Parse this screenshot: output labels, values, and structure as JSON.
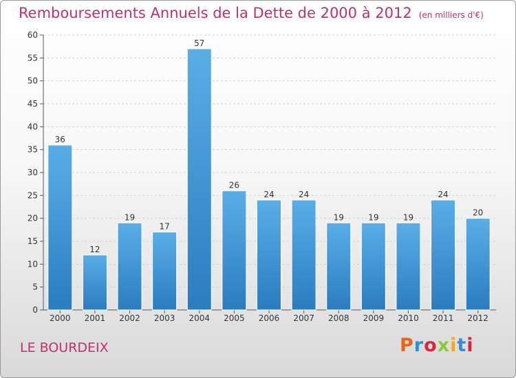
{
  "title": "Remboursements Annuels de la Dette de 2000 à 2012",
  "unit": "(en milliers d'€)",
  "commune": "LE BOURDEIX",
  "logo": {
    "text": "Proxiti",
    "colors": [
      "#e8641b",
      "#2e8fd6",
      "#d7263d",
      "#8dc63f",
      "#f5a623",
      "#2e8fd6",
      "#d7263d"
    ]
  },
  "colors": {
    "bar_top": "#5aaee6",
    "bar_bottom": "#2a7cc0",
    "title": "#c0306a"
  },
  "chart_data": {
    "type": "bar",
    "title": "Remboursements Annuels de la Dette de 2000 à 2012",
    "xlabel": "",
    "ylabel": "",
    "ylim": [
      0,
      60
    ],
    "yticks": [
      0,
      5,
      10,
      15,
      20,
      25,
      30,
      35,
      40,
      45,
      50,
      55,
      60
    ],
    "grid": "horizontal",
    "categories": [
      "2000",
      "2001",
      "2002",
      "2003",
      "2004",
      "2005",
      "2006",
      "2007",
      "2008",
      "2009",
      "2010",
      "2011",
      "2012"
    ],
    "values": [
      36,
      12,
      19,
      17,
      57,
      26,
      24,
      24,
      19,
      19,
      19,
      24,
      20
    ]
  }
}
